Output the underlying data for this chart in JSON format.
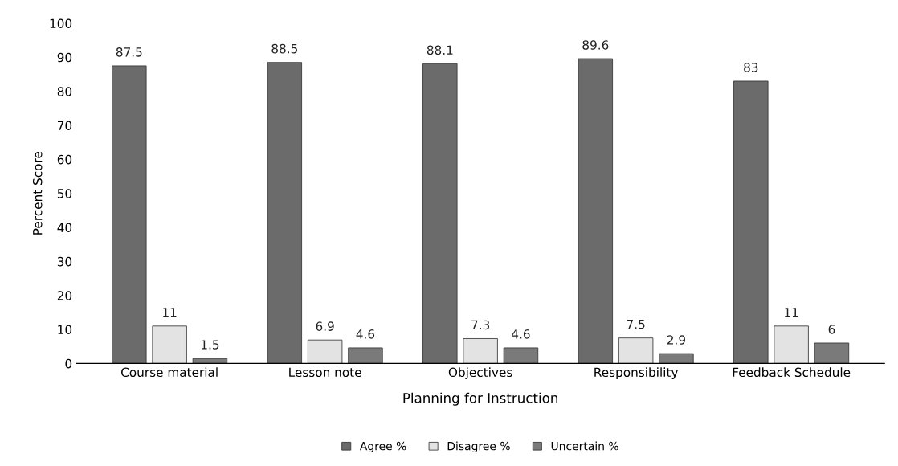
{
  "chart_data": {
    "type": "bar",
    "xlabel": "Planning for Instruction",
    "ylabel": "Percent Score",
    "categories": [
      "Course material",
      "Lesson note",
      "Objectives",
      "Responsibility",
      "Feedback Schedule"
    ],
    "series": [
      {
        "name": "Agree %",
        "color": "#6b6b6b",
        "values": [
          87.5,
          88.5,
          88.1,
          89.6,
          83
        ]
      },
      {
        "name": "Disagree %",
        "color": "#e3e3e3",
        "values": [
          11,
          6.9,
          7.3,
          7.5,
          11
        ]
      },
      {
        "name": "Uncertain %",
        "color": "#7a7a7a",
        "values": [
          1.5,
          4.6,
          4.6,
          2.9,
          6
        ]
      }
    ],
    "ylim": [
      0,
      100
    ],
    "yticks": [
      0,
      10,
      20,
      30,
      40,
      50,
      60,
      70,
      80,
      90,
      100
    ],
    "data_labels": true,
    "legend": "bottom",
    "grid": false
  }
}
